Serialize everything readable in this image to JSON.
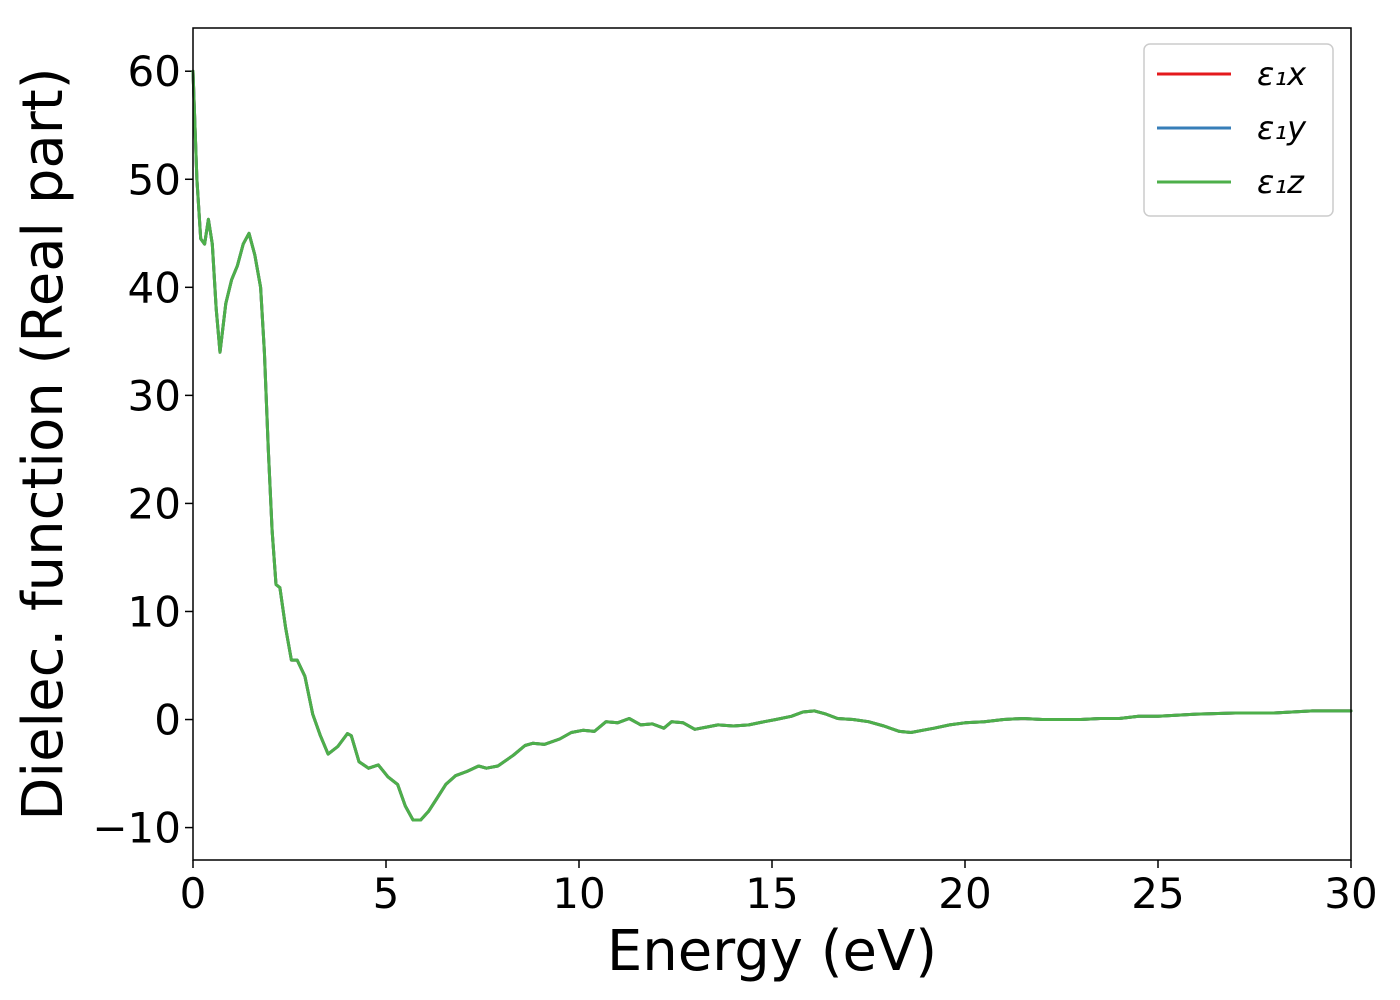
{
  "chart_data": {
    "type": "line",
    "xlabel": "Energy (eV)",
    "ylabel": "Dielec. function (Real part)",
    "xlim": [
      0,
      30
    ],
    "ylim": [
      -13,
      64
    ],
    "xticks": [
      0,
      5,
      10,
      15,
      20,
      25,
      30
    ],
    "xtick_labels": [
      "0",
      "5",
      "10",
      "15",
      "20",
      "25",
      "30"
    ],
    "yticks": [
      -10,
      0,
      10,
      20,
      30,
      40,
      50,
      60
    ],
    "ytick_labels": [
      "−10",
      "0",
      "10",
      "20",
      "30",
      "40",
      "50",
      "60"
    ],
    "grid": false,
    "legend_position": "top-right",
    "series": [
      {
        "name": "ε₁x",
        "color": "#e41a1c"
      },
      {
        "name": "ε₁y",
        "color": "#377eb8"
      },
      {
        "name": "ε₁z",
        "color": "#4daf4a"
      }
    ],
    "x": [
      0.0,
      0.1,
      0.2,
      0.3,
      0.4,
      0.5,
      0.6,
      0.7,
      0.85,
      1.0,
      1.15,
      1.3,
      1.45,
      1.6,
      1.75,
      1.85,
      1.95,
      2.05,
      2.15,
      2.25,
      2.4,
      2.55,
      2.7,
      2.9,
      3.1,
      3.3,
      3.5,
      3.75,
      4.0,
      4.1,
      4.3,
      4.55,
      4.8,
      5.05,
      5.3,
      5.5,
      5.7,
      5.9,
      6.1,
      6.3,
      6.55,
      6.8,
      7.1,
      7.4,
      7.6,
      7.9,
      8.3,
      8.6,
      8.8,
      9.1,
      9.5,
      9.8,
      10.1,
      10.4,
      10.7,
      11.0,
      11.3,
      11.6,
      11.9,
      12.2,
      12.4,
      12.7,
      13.0,
      13.3,
      13.6,
      14.0,
      14.4,
      14.8,
      15.1,
      15.5,
      15.8,
      16.1,
      16.4,
      16.7,
      17.1,
      17.5,
      17.9,
      18.3,
      18.6,
      18.9,
      19.2,
      19.6,
      20.0,
      20.5,
      21.0,
      21.5,
      22.0,
      22.5,
      23.0,
      23.5,
      24.0,
      24.5,
      25.0,
      26.0,
      27.0,
      28.0,
      29.0,
      30.0
    ],
    "y": [
      60.0,
      50.0,
      44.5,
      44.0,
      46.3,
      44.0,
      38.0,
      34.0,
      38.5,
      40.7,
      42.0,
      44.0,
      45.0,
      43.0,
      40.0,
      34.0,
      25.0,
      17.5,
      12.5,
      12.2,
      8.5,
      5.5,
      5.5,
      4.0,
      0.5,
      -1.5,
      -3.2,
      -2.5,
      -1.3,
      -1.5,
      -3.9,
      -4.5,
      -4.2,
      -5.3,
      -6.0,
      -8.0,
      -9.3,
      -9.3,
      -8.5,
      -7.4,
      -6.0,
      -5.2,
      -4.8,
      -4.3,
      -4.5,
      -4.3,
      -3.3,
      -2.4,
      -2.2,
      -2.3,
      -1.8,
      -1.2,
      -1.0,
      -1.1,
      -0.2,
      -0.3,
      0.1,
      -0.5,
      -0.4,
      -0.8,
      -0.2,
      -0.3,
      -0.9,
      -0.7,
      -0.5,
      -0.6,
      -0.5,
      -0.2,
      0.0,
      0.3,
      0.7,
      0.8,
      0.5,
      0.1,
      0.0,
      -0.2,
      -0.6,
      -1.1,
      -1.2,
      -1.0,
      -0.8,
      -0.5,
      -0.3,
      -0.2,
      0.0,
      0.1,
      0.0,
      0.0,
      0.0,
      0.1,
      0.1,
      0.3,
      0.3,
      0.5,
      0.6,
      0.6,
      0.8,
      0.8
    ]
  }
}
